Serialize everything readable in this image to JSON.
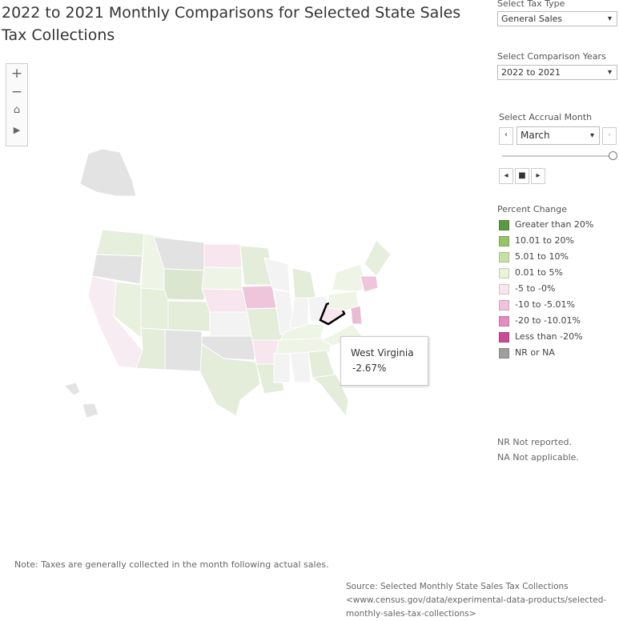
{
  "title": [
    "2022 to 2021 Monthly Comparisons for Selected State Sales",
    "Tax Collections"
  ],
  "filters": {
    "tax_type_label": "Select Tax Type",
    "tax_type": "General Sales",
    "years_label": "Select Comparison Years",
    "years": "2022 to 2021",
    "month_label": "Select Accrual Month",
    "month": "March"
  },
  "legend": {
    "title": "Percent Change",
    "items": [
      {
        "label": "Greater than 20%",
        "color": "#5b9a40"
      },
      {
        "label": "10.01 to 20%",
        "color": "#97c46a"
      },
      {
        "label": "5.01 to 10%",
        "color": "#c6e0a6"
      },
      {
        "label": "0.01 to 5%",
        "color": "#e8f3d8"
      },
      {
        "label": "-5 to -0%",
        "color": "#f8e6ef"
      },
      {
        "label": "-10 to -5.01%",
        "color": "#f0c2dc"
      },
      {
        "label": "-20 to -10.01%",
        "color": "#e28dbf"
      },
      {
        "label": "Less than -20%",
        "color": "#c94c96"
      },
      {
        "label": "NR or NA",
        "color": "#9e9e9e"
      }
    ]
  },
  "tooltip": {
    "state": "West Virginia",
    "value": "-2.67%"
  },
  "footnotes": [
    "NR Not reported.",
    "NA Not applicable."
  ],
  "note": "Note: Taxes are generally collected in the month following actual sales.",
  "source": [
    "Source: Selected Monthly State Sales Tax Collections",
    "<www.census.gov/data/experimental-data-products/selected-",
    "monthly-sales-tax-collections>"
  ]
}
